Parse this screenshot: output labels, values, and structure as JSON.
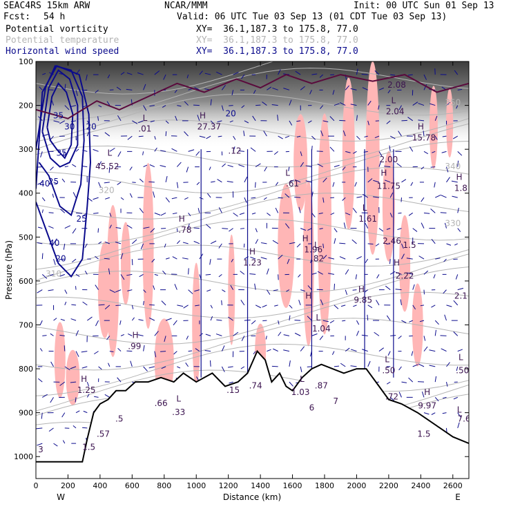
{
  "header": {
    "model": "SEAC4RS 15km ARW",
    "org": "NCAR/MMM",
    "init": "Init: 00 UTC Sun 01 Sep 13",
    "fcst_label": "Fcst:",
    "fcst_value": "54 h",
    "valid": "Valid: 06 UTC Tue 03 Sep 13 (01 CDT Tue 03 Sep 13)",
    "fields": [
      {
        "name": "Potential vorticity",
        "xy": "XY=  36.1,187.3 to 175.8, 77.0",
        "color": "#000000"
      },
      {
        "name": "Potential temperature",
        "xy": "XY=  36.1,187.3 to 175.8, 77.0",
        "color": "#b4b4b4"
      },
      {
        "name": "Horizontal wind speed",
        "xy": "XY=  36.1,187.3 to 175.8, 77.0",
        "color": "#0a0a8c"
      }
    ]
  },
  "colors": {
    "pv_fill": "#ffb6b6",
    "theta": "#b4b4b4",
    "wind": "#0a0a8c",
    "pv_contour": "#5a0a3c",
    "terrain": "#000000"
  },
  "chart_data": {
    "type": "cross-section",
    "xlabel": "Distance (km)",
    "ylabel": "Pressure (hPa)",
    "xlim": [
      0,
      2700
    ],
    "ylim": [
      1050,
      100
    ],
    "x_ticks": [
      0,
      200,
      400,
      600,
      800,
      1000,
      1200,
      1400,
      1600,
      1800,
      2000,
      2200,
      2400,
      2600
    ],
    "y_ticks": [
      100,
      200,
      300,
      400,
      500,
      600,
      700,
      800,
      900,
      1000
    ],
    "end_labels": {
      "left": "W",
      "right": "E"
    },
    "terrain_surface_hpa": [
      [
        0,
        1012
      ],
      [
        150,
        1012
      ],
      [
        290,
        1012
      ],
      [
        320,
        960
      ],
      [
        360,
        900
      ],
      [
        400,
        880
      ],
      [
        450,
        870
      ],
      [
        500,
        850
      ],
      [
        560,
        850
      ],
      [
        620,
        830
      ],
      [
        700,
        830
      ],
      [
        780,
        820
      ],
      [
        860,
        830
      ],
      [
        920,
        810
      ],
      [
        1000,
        830
      ],
      [
        1100,
        810
      ],
      [
        1180,
        840
      ],
      [
        1260,
        830
      ],
      [
        1320,
        810
      ],
      [
        1380,
        760
      ],
      [
        1430,
        780
      ],
      [
        1470,
        830
      ],
      [
        1520,
        810
      ],
      [
        1560,
        840
      ],
      [
        1600,
        850
      ],
      [
        1660,
        820
      ],
      [
        1720,
        800
      ],
      [
        1780,
        790
      ],
      [
        1850,
        800
      ],
      [
        1920,
        810
      ],
      [
        2000,
        800
      ],
      [
        2060,
        800
      ],
      [
        2140,
        840
      ],
      [
        2200,
        870
      ],
      [
        2280,
        880
      ],
      [
        2380,
        900
      ],
      [
        2500,
        930
      ],
      [
        2600,
        955
      ],
      [
        2700,
        970
      ]
    ],
    "wind_speed_contours": [
      {
        "value": 35,
        "points": [
          [
            70,
            250
          ],
          [
            100,
            180
          ],
          [
            140,
            150
          ],
          [
            190,
            170
          ],
          [
            230,
            220
          ],
          [
            220,
            290
          ],
          [
            180,
            320
          ],
          [
            130,
            300
          ],
          [
            90,
            280
          ],
          [
            70,
            250
          ]
        ]
      },
      {
        "value": 30,
        "points": [
          [
            40,
            260
          ],
          [
            80,
            160
          ],
          [
            140,
            120
          ],
          [
            210,
            140
          ],
          [
            260,
            200
          ],
          [
            260,
            290
          ],
          [
            210,
            330
          ],
          [
            150,
            340
          ],
          [
            90,
            320
          ],
          [
            40,
            260
          ]
        ]
      },
      {
        "value": 25,
        "points": [
          [
            0,
            300
          ],
          [
            60,
            160
          ],
          [
            120,
            110
          ],
          [
            220,
            120
          ],
          [
            290,
            180
          ],
          [
            300,
            280
          ],
          [
            280,
            380
          ],
          [
            220,
            450
          ],
          [
            150,
            430
          ],
          [
            80,
            360
          ],
          [
            20,
            330
          ]
        ]
      },
      {
        "value": 20,
        "points": [
          [
            0,
            390
          ],
          [
            40,
            170
          ],
          [
            130,
            110
          ],
          [
            270,
            130
          ],
          [
            330,
            220
          ],
          [
            340,
            330
          ],
          [
            320,
            430
          ],
          [
            290,
            550
          ],
          [
            220,
            590
          ],
          [
            140,
            560
          ],
          [
            60,
            480
          ],
          [
            0,
            420
          ]
        ]
      }
    ],
    "speed_labels": [
      {
        "x": 55,
        "p": 385,
        "text": "40"
      },
      {
        "x": 110,
        "p": 380,
        "text": "25"
      },
      {
        "x": 140,
        "p": 230,
        "text": "35"
      },
      {
        "x": 210,
        "p": 255,
        "text": "30"
      },
      {
        "x": 160,
        "p": 315,
        "text": "35"
      },
      {
        "x": 155,
        "p": 555,
        "text": "20"
      },
      {
        "x": 285,
        "p": 465,
        "text": "25"
      },
      {
        "x": 345,
        "p": 255,
        "text": "20"
      },
      {
        "x": 1215,
        "p": 225,
        "text": "20"
      },
      {
        "x": 115,
        "p": 520,
        "text": "40"
      }
    ],
    "theta_labels": [
      {
        "x": 2600,
        "p": 200,
        "text": "350"
      },
      {
        "x": 2600,
        "p": 345,
        "text": "340"
      },
      {
        "x": 2600,
        "p": 475,
        "text": "330"
      },
      {
        "x": 440,
        "p": 400,
        "text": "320"
      },
      {
        "x": 110,
        "p": 590,
        "text": "310"
      }
    ],
    "extrema_labels": [
      {
        "x": 2250,
        "p": 160,
        "text": "2.08"
      },
      {
        "x": 2230,
        "p": 195,
        "text": "L"
      },
      {
        "x": 2240,
        "p": 220,
        "text": "2.04"
      },
      {
        "x": 2400,
        "p": 255,
        "text": "H"
      },
      {
        "x": 2420,
        "p": 280,
        "text": "15.78"
      },
      {
        "x": 2200,
        "p": 330,
        "text": "2.00"
      },
      {
        "x": 2170,
        "p": 360,
        "text": "H"
      },
      {
        "x": 2200,
        "p": 390,
        "text": "11.75"
      },
      {
        "x": 2640,
        "p": 370,
        "text": "H"
      },
      {
        "x": 2650,
        "p": 395,
        "text": "1.8"
      },
      {
        "x": 2050,
        "p": 440,
        "text": "L"
      },
      {
        "x": 2070,
        "p": 465,
        "text": "1.61"
      },
      {
        "x": 2220,
        "p": 515,
        "text": "2.46"
      },
      {
        "x": 2330,
        "p": 525,
        "text": "1.5"
      },
      {
        "x": 2250,
        "p": 565,
        "text": "H"
      },
      {
        "x": 2300,
        "p": 595,
        "text": "2.22"
      },
      {
        "x": 2650,
        "p": 640,
        "text": "2.1"
      },
      {
        "x": 2030,
        "p": 625,
        "text": "H"
      },
      {
        "x": 2040,
        "p": 650,
        "text": "9.85"
      },
      {
        "x": 1700,
        "p": 640,
        "text": "H"
      },
      {
        "x": 1760,
        "p": 690,
        "text": "L"
      },
      {
        "x": 1780,
        "p": 715,
        "text": "1.04"
      },
      {
        "x": 1570,
        "p": 360,
        "text": "L"
      },
      {
        "x": 1600,
        "p": 385,
        "text": ".61"
      },
      {
        "x": 1680,
        "p": 510,
        "text": "H"
      },
      {
        "x": 1730,
        "p": 535,
        "text": "1.96"
      },
      {
        "x": 1750,
        "p": 525,
        "text": "L"
      },
      {
        "x": 1755,
        "p": 555,
        "text": ".82"
      },
      {
        "x": 1350,
        "p": 540,
        "text": "H"
      },
      {
        "x": 1350,
        "p": 565,
        "text": "1.23"
      },
      {
        "x": 910,
        "p": 465,
        "text": "H"
      },
      {
        "x": 930,
        "p": 490,
        "text": ".78"
      },
      {
        "x": 680,
        "p": 235,
        "text": "L"
      },
      {
        "x": 680,
        "p": 260,
        "text": ".01"
      },
      {
        "x": 460,
        "p": 315,
        "text": "L"
      },
      {
        "x": 445,
        "p": 345,
        "text": "45.52"
      },
      {
        "x": 1040,
        "p": 230,
        "text": "H"
      },
      {
        "x": 1080,
        "p": 255,
        "text": "27.37"
      },
      {
        "x": 1240,
        "p": 310,
        "text": ".12"
      },
      {
        "x": 620,
        "p": 730,
        "text": "H"
      },
      {
        "x": 615,
        "p": 755,
        "text": ".99"
      },
      {
        "x": 300,
        "p": 830,
        "text": "H"
      },
      {
        "x": 315,
        "p": 855,
        "text": "1.25"
      },
      {
        "x": 780,
        "p": 885,
        "text": ".66"
      },
      {
        "x": 890,
        "p": 875,
        "text": "L"
      },
      {
        "x": 890,
        "p": 905,
        "text": ".33"
      },
      {
        "x": 1230,
        "p": 855,
        "text": ".15"
      },
      {
        "x": 1370,
        "p": 845,
        "text": ".74"
      },
      {
        "x": 1660,
        "p": 830,
        "text": "L"
      },
      {
        "x": 1650,
        "p": 860,
        "text": "1.03"
      },
      {
        "x": 1780,
        "p": 845,
        "text": ".87"
      },
      {
        "x": 1870,
        "p": 880,
        "text": "7"
      },
      {
        "x": 1720,
        "p": 895,
        "text": "6"
      },
      {
        "x": 2190,
        "p": 785,
        "text": "L"
      },
      {
        "x": 2200,
        "p": 810,
        "text": ".50"
      },
      {
        "x": 2220,
        "p": 870,
        "text": ".72"
      },
      {
        "x": 2440,
        "p": 860,
        "text": "H"
      },
      {
        "x": 2440,
        "p": 890,
        "text": "9.97"
      },
      {
        "x": 2650,
        "p": 780,
        "text": "L"
      },
      {
        "x": 2660,
        "p": 810,
        "text": ".50"
      },
      {
        "x": 2640,
        "p": 900,
        "text": "L"
      },
      {
        "x": 2670,
        "p": 920,
        "text": "7.6"
      },
      {
        "x": 2420,
        "p": 955,
        "text": "1.5"
      },
      {
        "x": 520,
        "p": 920,
        "text": ".5"
      },
      {
        "x": 420,
        "p": 955,
        "text": ".57"
      },
      {
        "x": 330,
        "p": 985,
        "text": "1.5"
      },
      {
        "x": 30,
        "p": 990,
        "text": "3"
      }
    ]
  }
}
